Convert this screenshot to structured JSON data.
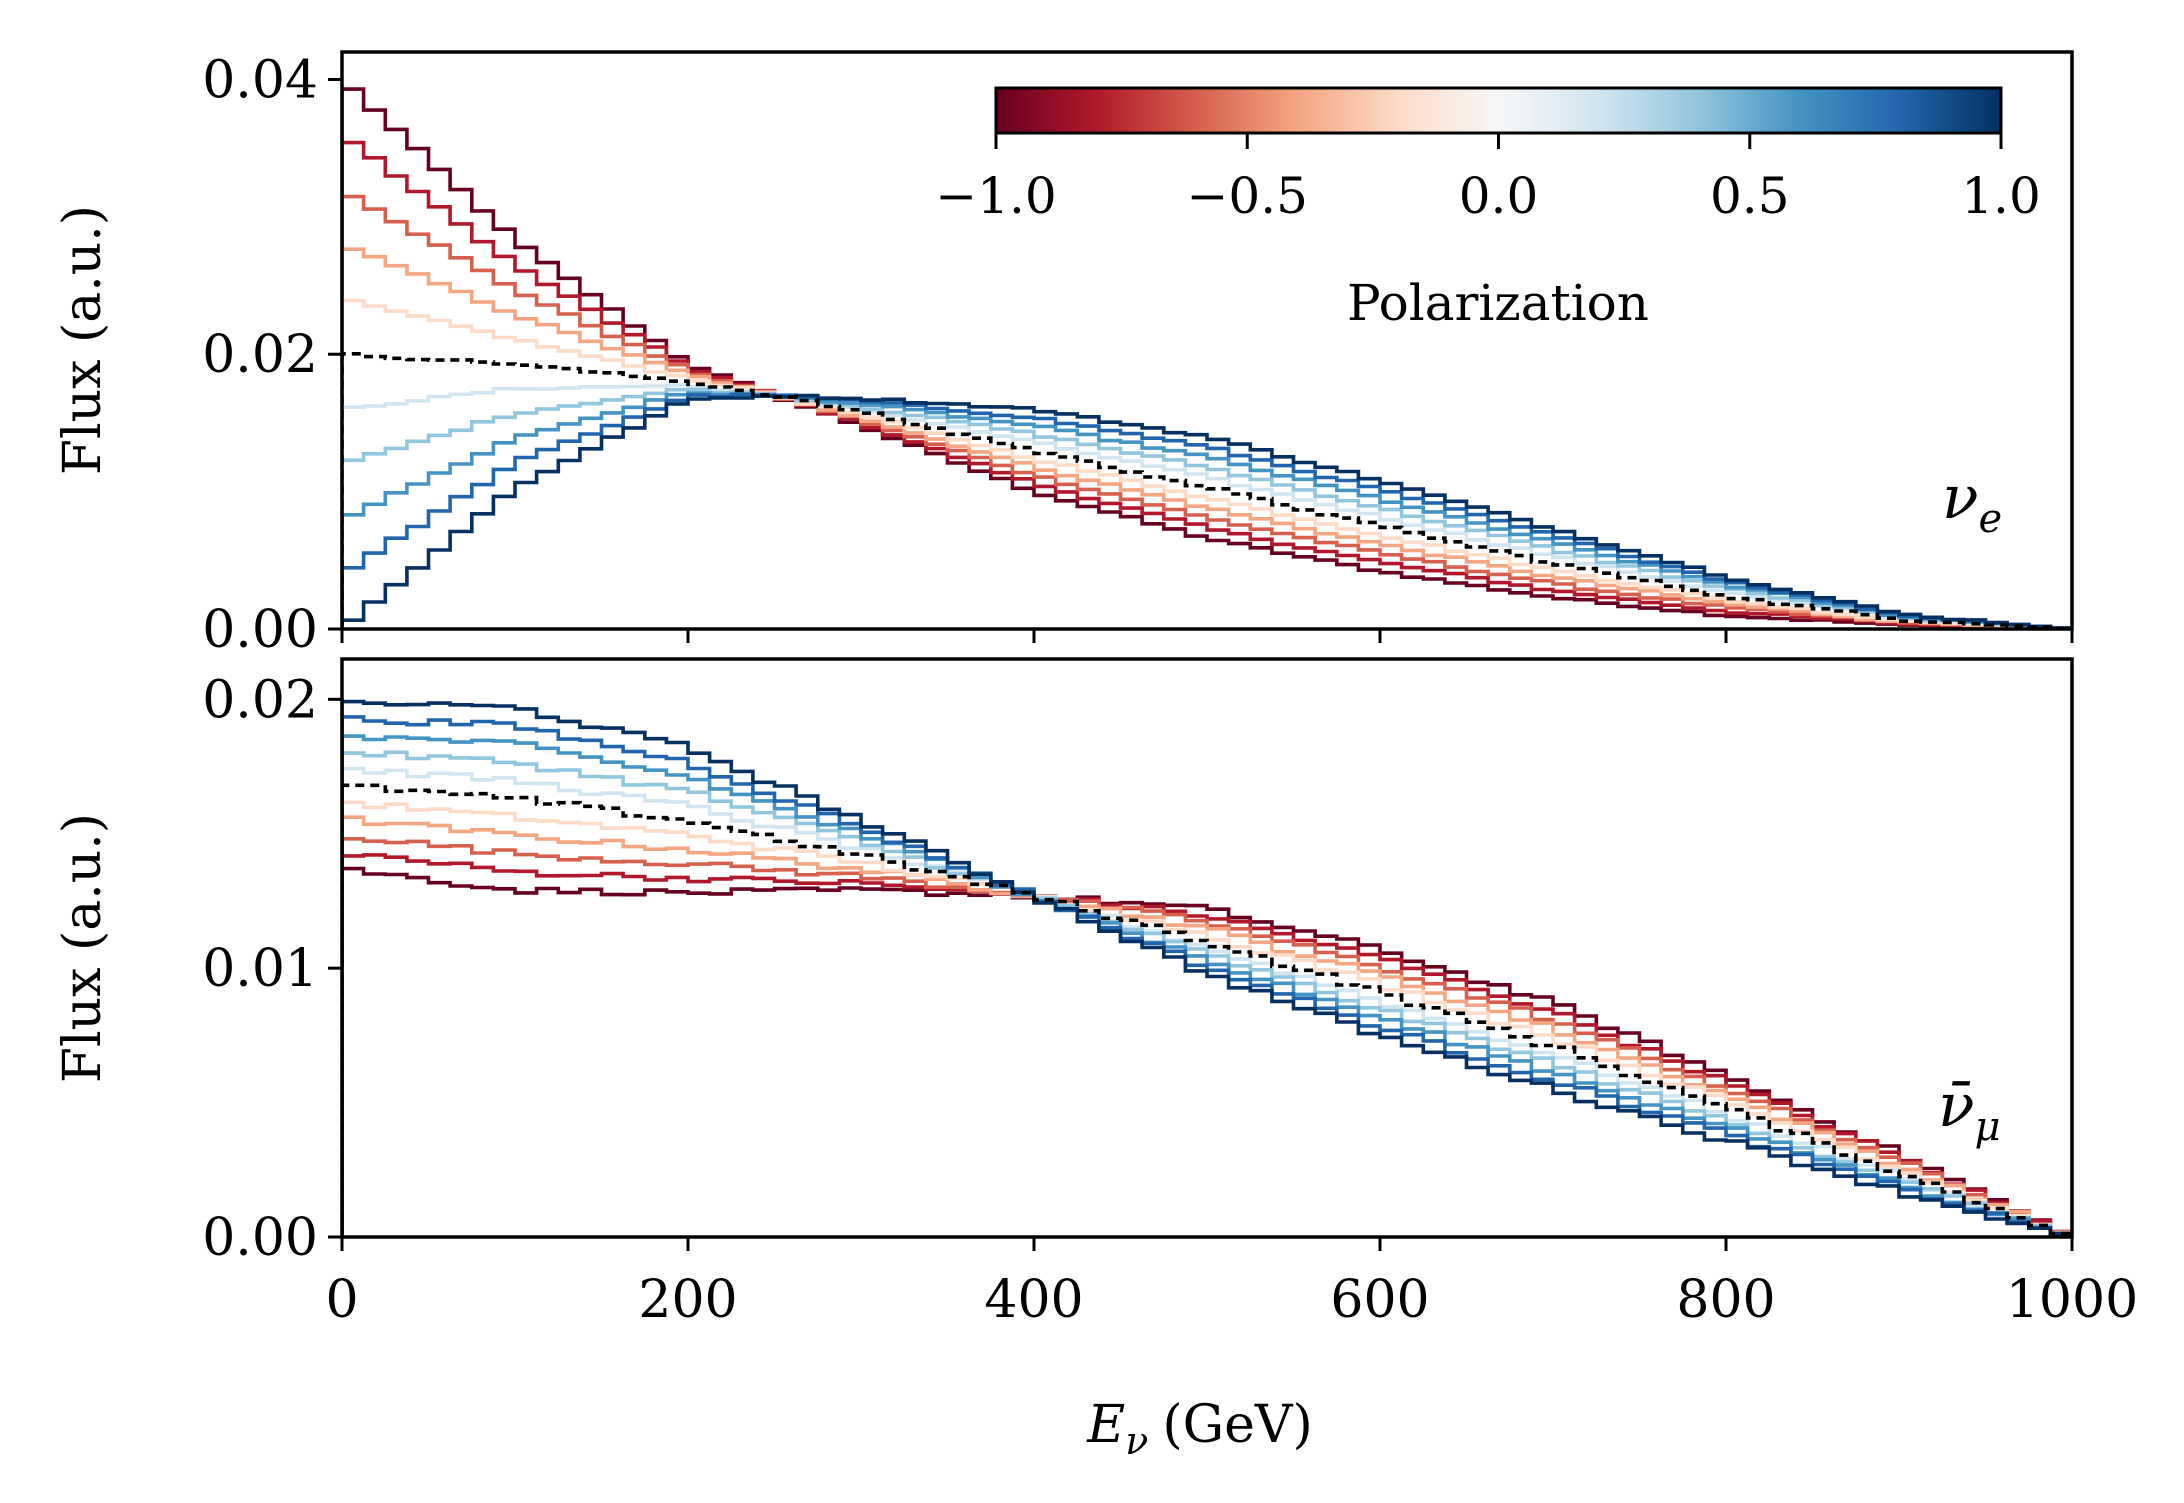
{
  "figure": {
    "x_label": "Eν (GeV)",
    "x_label_main": "E",
    "x_label_sub": "ν",
    "x_label_unit": "(GeV)",
    "x_ticks": [
      "0",
      "200",
      "400",
      "600",
      "800",
      "1000"
    ],
    "colorbar": {
      "label": "Polarization",
      "ticks": [
        "−1.0",
        "−0.5",
        "0.0",
        "0.5",
        "1.0"
      ],
      "range": [
        -1,
        1
      ],
      "colormap": "RdBu",
      "colors": [
        "#67001f",
        "#b2182b",
        "#d6604d",
        "#f4a582",
        "#fddbc7",
        "#f7f7f7",
        "#d1e5f0",
        "#92c5de",
        "#4393c3",
        "#2166ac",
        "#053061"
      ]
    }
  },
  "chart_data": [
    {
      "type": "line",
      "style": "step histogram",
      "panel": "top",
      "panel_label": "ν",
      "panel_label_sub": "e",
      "ylabel": "Flux (a.u.)",
      "y_ticks": [
        "0.00",
        "0.02",
        "0.04"
      ],
      "xlim": [
        0,
        1000
      ],
      "ylim": [
        0,
        0.042
      ],
      "bin_width": 12.5,
      "polarizations": [
        -1.0,
        -0.8,
        -0.6,
        -0.4,
        -0.2,
        0.0,
        0.2,
        0.4,
        0.6,
        0.8,
        1.0
      ],
      "reference": {
        "style": "black dashed",
        "polarization": "unpolarized"
      },
      "anchor_x": [
        0,
        100,
        200,
        250,
        300,
        400,
        500,
        600,
        700,
        800,
        900,
        1000
      ],
      "anchor_unpolarized": [
        0.02,
        0.0193,
        0.018,
        0.017,
        0.0158,
        0.013,
        0.0103,
        0.0075,
        0.0048,
        0.0024,
        0.0007,
        0.0
      ],
      "anchor_shape_at_pol_plus1": [
        -0.02,
        -0.009,
        -0.0013,
        0.0,
        0.001,
        0.003,
        0.0037,
        0.0033,
        0.0025,
        0.0014,
        0.0004,
        0.0
      ],
      "series": [
        {
          "polarization": -1.0,
          "color": "#67001f",
          "values_at_anchor_x": [
            0.04,
            0.0283,
            0.0193,
            0.017,
            0.0148,
            0.01,
            0.0066,
            0.0042,
            0.0023,
            0.001,
            0.0003,
            0.0
          ]
        },
        {
          "polarization": 0.0,
          "color": "#000000",
          "values_at_anchor_x": [
            0.02,
            0.0193,
            0.018,
            0.017,
            0.0158,
            0.013,
            0.0103,
            0.0075,
            0.0048,
            0.0024,
            0.0007,
            0.0
          ]
        },
        {
          "polarization": 1.0,
          "color": "#2166ac",
          "values_at_anchor_x": [
            0.0,
            0.0103,
            0.0167,
            0.017,
            0.0168,
            0.016,
            0.014,
            0.0108,
            0.0073,
            0.0038,
            0.0011,
            0.0
          ]
        }
      ]
    },
    {
      "type": "line",
      "style": "step histogram",
      "panel": "bottom",
      "panel_label": "ν̄",
      "panel_label_sub": "μ",
      "ylabel": "Flux (a.u.)",
      "y_ticks": [
        "0.00",
        "0.01",
        "0.02"
      ],
      "xlim": [
        0,
        1000
      ],
      "ylim": [
        0,
        0.0215
      ],
      "bin_width": 12.5,
      "polarizations": [
        -1.0,
        -0.8,
        -0.6,
        -0.4,
        -0.2,
        0.0,
        0.2,
        0.4,
        0.6,
        0.8,
        1.0
      ],
      "reference": {
        "style": "black dashed",
        "polarization": "unpolarized"
      },
      "anchor_x": [
        0,
        100,
        200,
        300,
        400,
        500,
        600,
        700,
        800,
        900,
        1000
      ],
      "anchor_unpolarized": [
        0.0168,
        0.0163,
        0.0155,
        0.0142,
        0.0127,
        0.011,
        0.0091,
        0.0071,
        0.0048,
        0.0024,
        0.0
      ],
      "anchor_shape_at_pol_plus1": [
        0.0031,
        0.0034,
        0.0027,
        0.0013,
        0.0,
        -0.0012,
        -0.0016,
        -0.0016,
        -0.0012,
        -0.0007,
        0.0
      ],
      "series": [
        {
          "polarization": -1.0,
          "color": "#67001f",
          "values_at_anchor_x": [
            0.0137,
            0.0129,
            0.0128,
            0.0129,
            0.0127,
            0.0122,
            0.0107,
            0.0087,
            0.006,
            0.0031,
            0.0
          ]
        },
        {
          "polarization": 0.0,
          "color": "#000000",
          "values_at_anchor_x": [
            0.0168,
            0.0163,
            0.0155,
            0.0142,
            0.0127,
            0.011,
            0.0091,
            0.0071,
            0.0048,
            0.0024,
            0.0
          ]
        },
        {
          "polarization": 1.0,
          "color": "#2166ac",
          "values_at_anchor_x": [
            0.0199,
            0.0197,
            0.0182,
            0.0155,
            0.0127,
            0.0098,
            0.0075,
            0.0055,
            0.0036,
            0.0017,
            0.0
          ]
        }
      ]
    }
  ]
}
